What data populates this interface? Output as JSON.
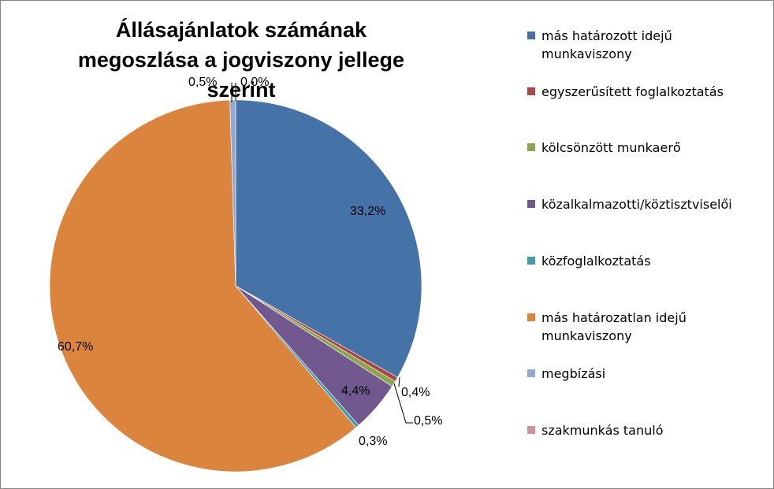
{
  "chart_data": {
    "type": "pie",
    "title": "Állásajánlatok számának megoszlása a jogviszony jellege szerint",
    "legend_position": "right",
    "slices": [
      {
        "name": "más határozott idejű munkaviszony",
        "value": 33.2,
        "label": "33,2%",
        "color": "#4572A7"
      },
      {
        "name": "egyszerűsített foglalkoztatás",
        "value": 0.4,
        "label": "0,4%",
        "color": "#AA4643"
      },
      {
        "name": "kölcsönzött munkaerő",
        "value": 0.5,
        "label": "0,5%",
        "color": "#89A54E"
      },
      {
        "name": "közalkalmazotti/köztisztviselői",
        "value": 4.4,
        "label": "4,4%",
        "color": "#71588F"
      },
      {
        "name": "közfoglalkoztatás",
        "value": 0.3,
        "label": "0,3%",
        "color": "#4198AF"
      },
      {
        "name": "más határozatlan idejű munkaviszony",
        "value": 60.7,
        "label": "60,7%",
        "color": "#DB843D"
      },
      {
        "name": "megbízási",
        "value": 0.5,
        "label": "0,5%",
        "color": "#93A9CF"
      },
      {
        "name": "szakmunkás tanuló",
        "value": 0.0,
        "label": "0,0%",
        "color": "#D19392"
      }
    ]
  }
}
